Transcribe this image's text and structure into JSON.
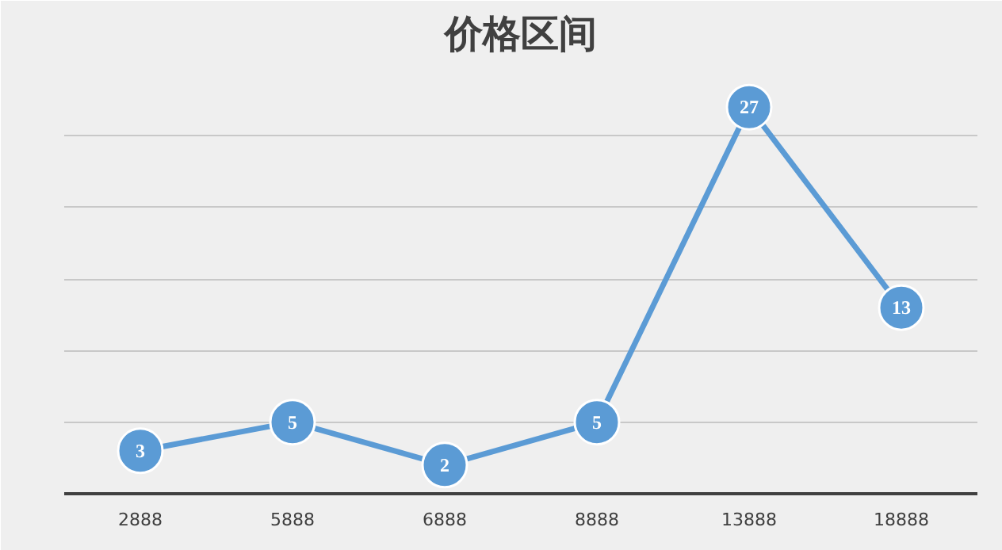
{
  "chart_data": {
    "type": "line",
    "title": "价格区间",
    "categories": [
      "2888",
      "5888",
      "6888",
      "8888",
      "13888",
      "18888"
    ],
    "series": [
      {
        "color": "#5b9bd5",
        "values": [
          3,
          5,
          2,
          5,
          27,
          13
        ]
      }
    ],
    "ylim": [
      0,
      30
    ],
    "yticks": [
      {
        "value": 0,
        "label": null
      },
      {
        "value": 5,
        "label": null
      },
      {
        "value": 10,
        "label": null
      },
      {
        "value": 15,
        "label": null
      },
      {
        "value": 20,
        "label": null
      },
      {
        "value": 25,
        "label": null
      },
      {
        "value": 30,
        "label": null
      }
    ],
    "grid": "y",
    "tick_labels": "x",
    "data_labels": true,
    "marker": "circle",
    "line_style": "solid"
  }
}
